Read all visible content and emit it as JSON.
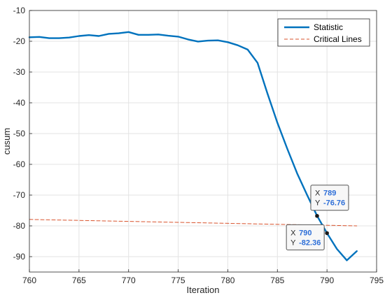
{
  "chart_data": {
    "type": "line",
    "xlabel": "Iteration",
    "ylabel": "cusum",
    "xlim": [
      760,
      795
    ],
    "ylim": [
      -95,
      -10
    ],
    "xticks": [
      760,
      765,
      770,
      775,
      780,
      785,
      790,
      795
    ],
    "yticks": [
      -10,
      -20,
      -30,
      -40,
      -50,
      -60,
      -70,
      -80,
      -90
    ],
    "grid": true,
    "legend_position": "top-right",
    "series": [
      {
        "name": "Statistic",
        "style": "solid",
        "color": "#0072bd",
        "x": [
          760,
          761,
          762,
          763,
          764,
          765,
          766,
          767,
          768,
          769,
          770,
          771,
          772,
          773,
          774,
          775,
          776,
          777,
          778,
          779,
          780,
          781,
          782,
          783,
          784,
          785,
          786,
          787,
          788,
          789,
          790,
          791,
          792,
          793
        ],
        "y": [
          -18.7,
          -18.6,
          -19.0,
          -19.0,
          -18.8,
          -18.3,
          -18.0,
          -18.3,
          -17.6,
          -17.4,
          -17.0,
          -17.9,
          -17.9,
          -17.8,
          -18.2,
          -18.5,
          -19.4,
          -20.1,
          -19.8,
          -19.7,
          -20.3,
          -21.3,
          -22.7,
          -27.0,
          -37.0,
          -46.5,
          -55.0,
          -63.0,
          -70.0,
          -76.76,
          -82.36,
          -87.5,
          -91.2,
          -88.2
        ]
      },
      {
        "name": "Critical Lines",
        "style": "dashed",
        "color": "#d9532d",
        "x": [
          760,
          793
        ],
        "y": [
          -77.9,
          -80.0
        ]
      }
    ],
    "datatips": [
      {
        "x_label": "X",
        "x_value": "789",
        "y_label": "Y",
        "y_value": "-76.76",
        "x": 789,
        "y": -76.76,
        "box_side": "above-right"
      },
      {
        "x_label": "X",
        "x_value": "790",
        "y_label": "Y",
        "y_value": "-82.36",
        "x": 790,
        "y": -82.36,
        "box_side": "below-left"
      }
    ]
  }
}
